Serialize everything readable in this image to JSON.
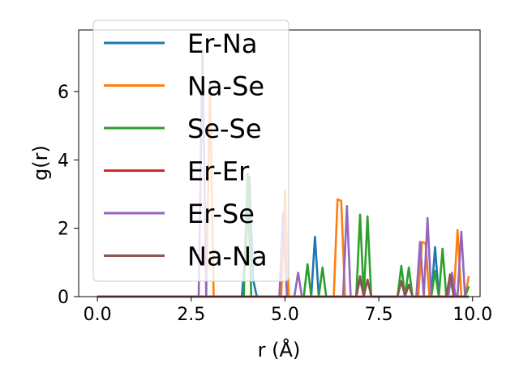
{
  "chart_data": {
    "type": "line",
    "title": "",
    "xlabel": "r (Å)",
    "ylabel": "g(r)",
    "xlim": [
      -0.5,
      10.2
    ],
    "ylim": [
      0,
      7.8
    ],
    "xticks": [
      "0.0",
      "2.5",
      "5.0",
      "7.5",
      "10.0"
    ],
    "xtick_values": [
      0,
      2.5,
      5,
      7.5,
      10
    ],
    "yticks": [
      "0",
      "2",
      "4",
      "6"
    ],
    "ytick_values": [
      0,
      2,
      4,
      6
    ],
    "grid": false,
    "legend_position": "upper-left",
    "series": [
      {
        "name": "Er-Na",
        "color": "#1f77b4",
        "points": [
          [
            0,
            0
          ],
          [
            3.85,
            0
          ],
          [
            3.95,
            1.3
          ],
          [
            4.05,
            3.5
          ],
          [
            4.15,
            0.5
          ],
          [
            4.25,
            0
          ],
          [
            5.7,
            0
          ],
          [
            5.8,
            1.75
          ],
          [
            5.9,
            0
          ],
          [
            8.9,
            0
          ],
          [
            9.0,
            1.45
          ],
          [
            9.1,
            0
          ],
          [
            9.9,
            0
          ]
        ]
      },
      {
        "name": "Na-Se",
        "color": "#ff7f0e",
        "points": [
          [
            0,
            0
          ],
          [
            2.9,
            0
          ],
          [
            3.0,
            6.2
          ],
          [
            3.1,
            0
          ],
          [
            4.9,
            0
          ],
          [
            5.0,
            3.1
          ],
          [
            5.1,
            0
          ],
          [
            6.3,
            0
          ],
          [
            6.4,
            2.85
          ],
          [
            6.5,
            2.8
          ],
          [
            6.6,
            0
          ],
          [
            8.55,
            0
          ],
          [
            8.65,
            1.6
          ],
          [
            8.75,
            1.55
          ],
          [
            8.85,
            0
          ],
          [
            9.5,
            0
          ],
          [
            9.6,
            1.95
          ],
          [
            9.7,
            0
          ],
          [
            9.8,
            0
          ],
          [
            9.9,
            0.6
          ]
        ]
      },
      {
        "name": "Se-Se",
        "color": "#2ca02c",
        "points": [
          [
            0,
            0
          ],
          [
            3.9,
            0
          ],
          [
            4.0,
            3.6
          ],
          [
            4.1,
            0
          ],
          [
            5.5,
            0
          ],
          [
            5.6,
            0.95
          ],
          [
            5.7,
            0
          ],
          [
            5.9,
            0
          ],
          [
            6.0,
            0.85
          ],
          [
            6.1,
            0
          ],
          [
            6.9,
            0
          ],
          [
            7.0,
            2.4
          ],
          [
            7.1,
            0
          ],
          [
            7.2,
            2.35
          ],
          [
            7.3,
            0
          ],
          [
            8.0,
            0
          ],
          [
            8.1,
            0.9
          ],
          [
            8.2,
            0
          ],
          [
            8.3,
            0.85
          ],
          [
            8.4,
            0
          ],
          [
            8.9,
            0
          ],
          [
            9.0,
            0.75
          ],
          [
            9.1,
            0
          ],
          [
            9.2,
            1.4
          ],
          [
            9.3,
            0
          ],
          [
            9.8,
            0
          ],
          [
            9.9,
            0.3
          ]
        ]
      },
      {
        "name": "Er-Er",
        "color": "#d62728",
        "points": [
          [
            0,
            0
          ],
          [
            9.9,
            0
          ]
        ]
      },
      {
        "name": "Er-Se",
        "color": "#9467bd",
        "points": [
          [
            0,
            0
          ],
          [
            2.7,
            0
          ],
          [
            2.8,
            7.2
          ],
          [
            2.9,
            0
          ],
          [
            4.85,
            0
          ],
          [
            4.95,
            2.45
          ],
          [
            5.05,
            0
          ],
          [
            5.25,
            0
          ],
          [
            5.35,
            0.7
          ],
          [
            5.45,
            0
          ],
          [
            6.55,
            0
          ],
          [
            6.65,
            2.65
          ],
          [
            6.75,
            0
          ],
          [
            6.9,
            0
          ],
          [
            7.0,
            0.5
          ],
          [
            7.1,
            0
          ],
          [
            8.5,
            0
          ],
          [
            8.6,
            1.6
          ],
          [
            8.7,
            0
          ],
          [
            8.8,
            2.3
          ],
          [
            8.9,
            0
          ],
          [
            9.35,
            0
          ],
          [
            9.45,
            0.7
          ],
          [
            9.55,
            0
          ],
          [
            9.6,
            0
          ],
          [
            9.7,
            1.9
          ],
          [
            9.8,
            0
          ]
        ]
      },
      {
        "name": "Na-Na",
        "color": "#8c564b",
        "points": [
          [
            0,
            0
          ],
          [
            6.9,
            0
          ],
          [
            7.0,
            0.6
          ],
          [
            7.1,
            0
          ],
          [
            7.2,
            0.5
          ],
          [
            7.3,
            0
          ],
          [
            8.0,
            0
          ],
          [
            8.1,
            0.45
          ],
          [
            8.2,
            0
          ],
          [
            8.3,
            0.35
          ],
          [
            8.4,
            0
          ],
          [
            9.3,
            0
          ],
          [
            9.4,
            0.65
          ],
          [
            9.5,
            0
          ],
          [
            9.9,
            0
          ]
        ]
      }
    ]
  }
}
